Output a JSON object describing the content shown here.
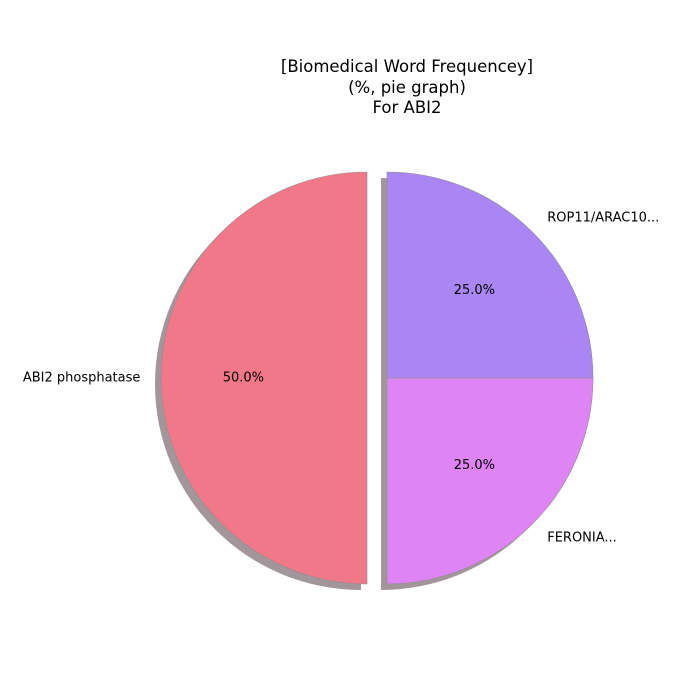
{
  "chart_data": {
    "type": "pie",
    "title_lines": [
      "[Biomedical Word Frequencey]",
      "(%, pie graph)",
      "For ABI2"
    ],
    "slices": [
      {
        "label": "ROP11/ARAC10...",
        "value": 25.0,
        "pct_label": "25.0%",
        "color": "#aa86f5"
      },
      {
        "label": "ABI2 phosphatase",
        "value": 50.0,
        "pct_label": "50.0%",
        "color": "#f07888"
      },
      {
        "label": "FERONIA...",
        "value": 25.0,
        "pct_label": "25.0%",
        "color": "#df84f4"
      }
    ],
    "exploded": [
      "ABI2 phosphatase"
    ],
    "shadow": true,
    "shadow_color": "#a3969a"
  }
}
